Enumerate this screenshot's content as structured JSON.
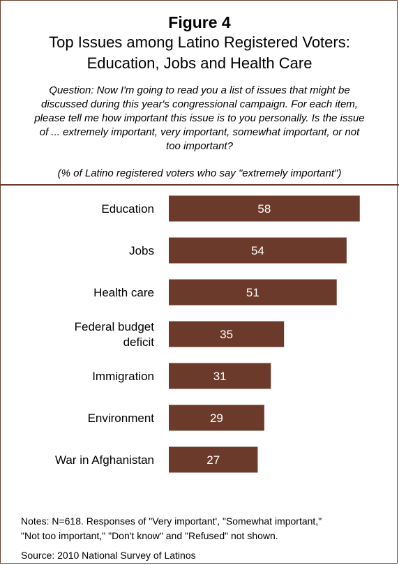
{
  "header": {
    "figure_label": "Figure 4",
    "title_line1": "Top Issues among Latino Registered Voters:",
    "title_line2": "Education, Jobs and Health Care",
    "question_line1": "Question: Now I'm going to read you a list of issues that might be",
    "question_line2": "discussed during this year's congressional campaign.  For each item,",
    "question_line3": "please tell me how important this issue is to you personally.  Is the issue",
    "question_line4": "of ... extremely important, very important, somewhat important, or not",
    "question_line5": "too important?",
    "subquestion": "(% of Latino registered voters who say \"extremely important\")"
  },
  "footer": {
    "notes_line1": "Notes: N=618. Responses of \"Very important', \"Somewhat important,\"",
    "notes_line2": "\"Not too important,\" \"Don't know\" and \"Refused\" not shown.",
    "source": "Source: 2010 National Survey of Latinos"
  },
  "chart_data": {
    "type": "bar",
    "orientation": "horizontal",
    "categories": [
      [
        "Education"
      ],
      [
        "Jobs"
      ],
      [
        "Health care"
      ],
      [
        "Federal budget",
        "deficit"
      ],
      [
        "Immigration"
      ],
      [
        "Environment"
      ],
      [
        "War in Afghanistan"
      ]
    ],
    "values": [
      58,
      54,
      51,
      35,
      31,
      29,
      27
    ],
    "data_labels": true,
    "legend": "none",
    "grid": false,
    "bar_color": "#6b3a2a",
    "label_color": "#ffffff"
  }
}
